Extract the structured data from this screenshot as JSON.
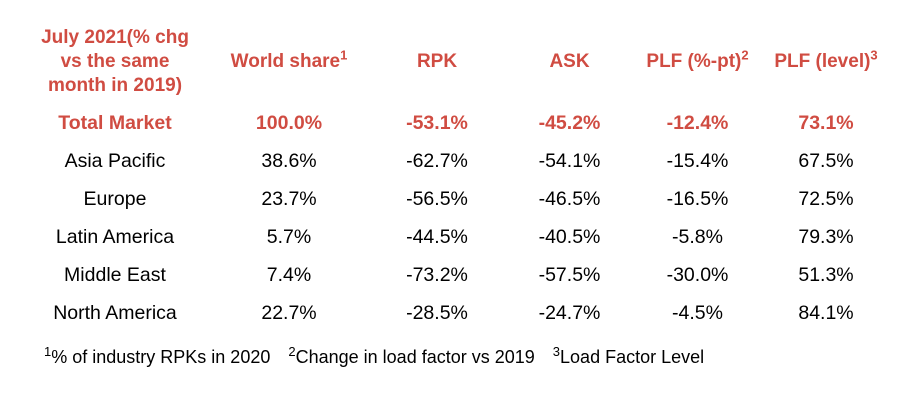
{
  "chart_data": {
    "type": "table",
    "title": "July 2021 (% chg vs the same month in 2019)",
    "title_lines": [
      "July 2021(% chg",
      "vs the same",
      "month in 2019)"
    ],
    "columns": [
      {
        "label": "World share",
        "sup": "1"
      },
      {
        "label": "RPK",
        "sup": ""
      },
      {
        "label": "ASK",
        "sup": ""
      },
      {
        "label": "PLF (%-pt)",
        "sup": "2"
      },
      {
        "label": "PLF (level)",
        "sup": "3"
      }
    ],
    "rows": [
      {
        "region": "Total Market",
        "world_share": "100.0%",
        "rpk": "-53.1%",
        "ask": "-45.2%",
        "plf_pt": "-12.4%",
        "plf_level": "73.1%",
        "emphasis": true
      },
      {
        "region": "Asia Pacific",
        "world_share": "38.6%",
        "rpk": "-62.7%",
        "ask": "-54.1%",
        "plf_pt": "-15.4%",
        "plf_level": "67.5%",
        "emphasis": false
      },
      {
        "region": "Europe",
        "world_share": "23.7%",
        "rpk": "-56.5%",
        "ask": "-46.5%",
        "plf_pt": "-16.5%",
        "plf_level": "72.5%",
        "emphasis": false
      },
      {
        "region": "Latin America",
        "world_share": "5.7%",
        "rpk": "-44.5%",
        "ask": "-40.5%",
        "plf_pt": "-5.8%",
        "plf_level": "79.3%",
        "emphasis": false
      },
      {
        "region": "Middle East",
        "world_share": "7.4%",
        "rpk": "-73.2%",
        "ask": "-57.5%",
        "plf_pt": "-30.0%",
        "plf_level": "51.3%",
        "emphasis": false
      },
      {
        "region": "North America",
        "world_share": "22.7%",
        "rpk": "-28.5%",
        "ask": "-24.7%",
        "plf_pt": "-4.5%",
        "plf_level": "84.1%",
        "emphasis": false
      }
    ],
    "footnotes": [
      {
        "sup": "1",
        "text": "% of industry RPKs in 2020"
      },
      {
        "sup": "2",
        "text": "Change in load factor vs 2019"
      },
      {
        "sup": "3",
        "text": "Load Factor Level"
      }
    ],
    "layout": {
      "grid": "off",
      "legend": "none"
    }
  },
  "colors": {
    "accent_red": "#d04c42",
    "text_black": "#000000",
    "background": "#ffffff"
  }
}
